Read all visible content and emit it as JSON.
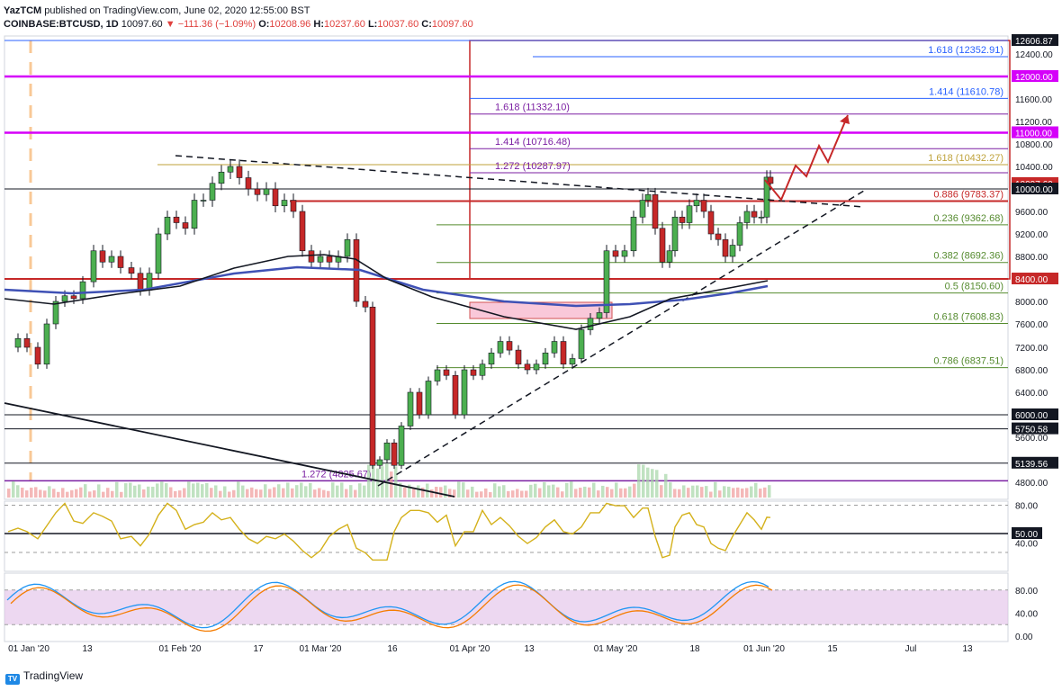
{
  "header": {
    "publisher": "YazTCM",
    "published_text": "published on TradingView.com, June 02, 2020 12:55:00 BST",
    "symbol": "COINBASE:BTCUSD, 1D",
    "last": "10097.60",
    "change": "▼ −111.36 (−1.09%)",
    "open_label": "O:",
    "open": "10208.96",
    "high_label": "H:",
    "high": "10237.60",
    "low_label": "L:",
    "low": "10037.60",
    "close_label": "C:",
    "close": "10097.60"
  },
  "logo_text": "TradingView",
  "colors": {
    "magenta": "#d500f9",
    "blue_line": "#2962ff",
    "purple": "#7b1fa2",
    "green": "#558b2f",
    "olive": "#bfa23a",
    "red": "#c62828",
    "candle_up": "#4caf50",
    "candle_down": "#c62828",
    "ma_black": "#131722",
    "ma_blue": "#3f51b5",
    "rsi": "#d4b11b",
    "stoch_blue": "#2196f3",
    "stoch_orange": "#f57c00"
  },
  "chart_data": {
    "type": "candlestick",
    "symbol": "BTCUSD",
    "interval": "1D",
    "y_axis": {
      "ticks": [
        "12400.00",
        "12000.00",
        "11600.00",
        "11200.00",
        "10800.00",
        "10400.00",
        "10000.00",
        "9600.00",
        "9200.00",
        "8800.00",
        "8400.00",
        "8000.00",
        "7600.00",
        "7200.00",
        "6800.00",
        "6400.00",
        "6000.00",
        "5600.00",
        "4800.00"
      ],
      "highlighted": [
        {
          "text": "12606.87",
          "color": "#131722"
        },
        {
          "text": "12000.00",
          "color": "#d500f9"
        },
        {
          "text": "11000.00",
          "color": "#d500f9"
        },
        {
          "text": "10097.60",
          "color": "#c62828"
        },
        {
          "text": "10000.00",
          "color": "#131722"
        },
        {
          "text": "8400.00",
          "color": "#c62828"
        },
        {
          "text": "6000.00",
          "color": "#131722"
        },
        {
          "text": "5750.58",
          "color": "#131722"
        },
        {
          "text": "5139.56",
          "color": "#131722"
        }
      ]
    },
    "x_axis": {
      "ticks": [
        "01 Jan '20",
        "13",
        "01 Feb '20",
        "17",
        "01 Mar '20",
        "16",
        "01 Apr '20",
        "13",
        "01 May '20",
        "18",
        "01 Jun '20",
        "15",
        "Jul",
        "13"
      ]
    },
    "levels": [
      {
        "label": "1.618 (12352.91)",
        "price": 12352.91,
        "color": "#2962ff"
      },
      {
        "label": "1.414 (11610.78)",
        "price": 11610.78,
        "color": "#2962ff"
      },
      {
        "label": "1.618 (11332.10)",
        "price": 11332.1,
        "color": "#7b1fa2"
      },
      {
        "label": "1.414 (10716.48)",
        "price": 10716.48,
        "color": "#7b1fa2"
      },
      {
        "label": "1.618 (10432.27)",
        "price": 10432.27,
        "color": "#bfa23a"
      },
      {
        "label": "1.272 (10287.97)",
        "price": 10287.97,
        "color": "#7b1fa2"
      },
      {
        "label": "0.886 (9783.37)",
        "price": 9783.37,
        "color": "#c62828"
      },
      {
        "label": "0.236 (9362.68)",
        "price": 9362.68,
        "color": "#558b2f"
      },
      {
        "label": "0.382 (8692.36)",
        "price": 8692.36,
        "color": "#558b2f"
      },
      {
        "label": "0.5 (8150.60)",
        "price": 8150.6,
        "color": "#558b2f"
      },
      {
        "label": "0.618 (7608.83)",
        "price": 7608.83,
        "color": "#558b2f"
      },
      {
        "label": "0.786 (6837.51)",
        "price": 6837.51,
        "color": "#558b2f"
      },
      {
        "label": "1.272 (4825.67)",
        "price": 4825.67,
        "color": "#7b1fa2"
      }
    ],
    "rsi": {
      "ticks": [
        "80.00",
        "50.00",
        "40.00"
      ],
      "last_label": "50.00"
    },
    "stochastic": {
      "ticks": [
        "80.00",
        "40.00",
        "0.00"
      ]
    },
    "ohlc_last": {
      "open": 10208.96,
      "high": 10237.6,
      "low": 10037.6,
      "close": 10097.6
    }
  }
}
